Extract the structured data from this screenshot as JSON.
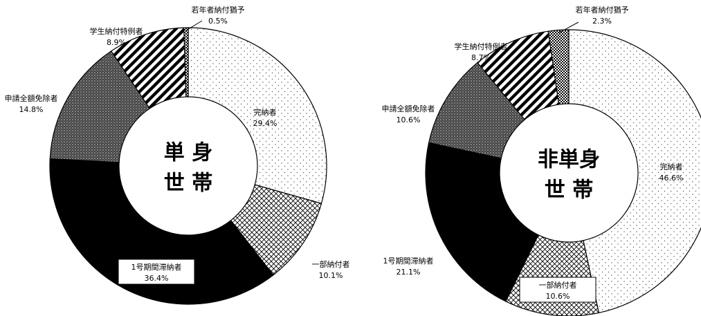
{
  "chart_data": [
    {
      "type": "donut",
      "center_label": [
        "単 身",
        "世 帯"
      ],
      "categories": [
        "完納者",
        "一部納付者",
        "1号期間滞納者",
        "申請全額免除者",
        "学生納付特例者",
        "若年者納付猶予"
      ],
      "values": [
        29.4,
        10.1,
        36.4,
        14.8,
        8.9,
        0.5
      ],
      "value_labels": [
        "29.4%",
        "10.1%",
        "36.4%",
        "14.8%",
        "8.9%",
        "0.5%"
      ],
      "patterns": [
        "dots",
        "crosshatch",
        "solid",
        "dense",
        "stripes",
        "checker"
      ]
    },
    {
      "type": "donut",
      "center_label": [
        "非単身",
        "世 帯"
      ],
      "categories": [
        "完納者",
        "一部納付者",
        "1号期間滞納者",
        "申請全額免除者",
        "学生納付特例者",
        "若年者納付猶予"
      ],
      "values": [
        46.6,
        10.6,
        21.1,
        10.6,
        8.7,
        2.3
      ],
      "value_labels": [
        "46.6%",
        "10.6%",
        "21.1%",
        "10.6%",
        "8.7%",
        "2.3%"
      ],
      "patterns": [
        "dots",
        "crosshatch",
        "solid",
        "dense",
        "stripes",
        "checker"
      ]
    }
  ]
}
